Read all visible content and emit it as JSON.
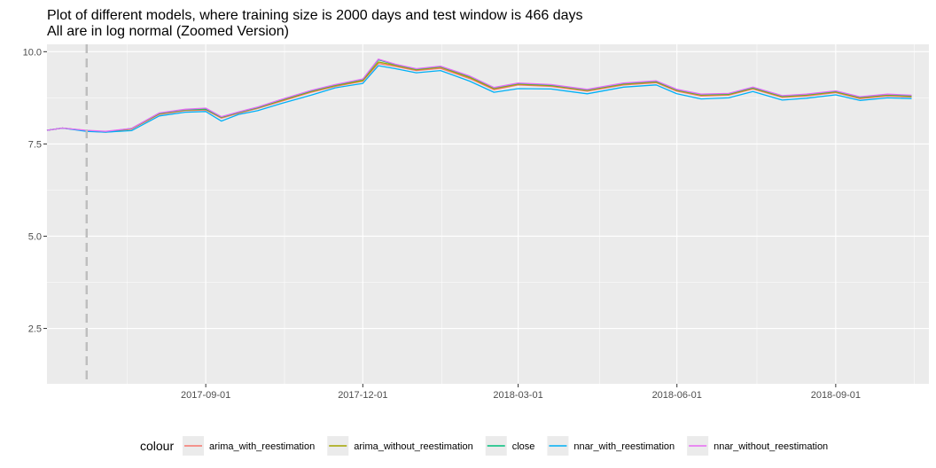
{
  "chart_data": {
    "type": "line",
    "title": "Plot of different models, where training size is 2000 days and test window is 466 days",
    "subtitle": "All are in log normal (Zoomed Version)",
    "xlabel": "",
    "ylabel": "",
    "xlim": [
      "2017-06-01",
      "2018-10-25"
    ],
    "ylim": [
      1.0,
      10.2
    ],
    "x_ticks": [
      "2017-09-01",
      "2017-12-01",
      "2018-03-01",
      "2018-06-01",
      "2018-09-01"
    ],
    "y_ticks": [
      2.5,
      5.0,
      7.5,
      10.0
    ],
    "y_tick_labels": [
      "2.5",
      "5.0",
      "7.5",
      "10.0"
    ],
    "grid": true,
    "legend_position": "bottom",
    "legend_title": "colour",
    "vline": {
      "x": "2017-06-24",
      "style": "dashed",
      "color": "#bebebe"
    },
    "x": [
      "2017-06-01",
      "2017-06-10",
      "2017-06-24",
      "2017-07-05",
      "2017-07-20",
      "2017-08-05",
      "2017-08-20",
      "2017-09-01",
      "2017-09-10",
      "2017-09-20",
      "2017-10-01",
      "2017-10-15",
      "2017-11-01",
      "2017-11-15",
      "2017-12-01",
      "2017-12-10",
      "2017-12-20",
      "2018-01-01",
      "2018-01-15",
      "2018-02-01",
      "2018-02-15",
      "2018-03-01",
      "2018-03-20",
      "2018-04-10",
      "2018-05-01",
      "2018-05-20",
      "2018-06-01",
      "2018-06-15",
      "2018-07-01",
      "2018-07-15",
      "2018-08-01",
      "2018-08-15",
      "2018-09-01",
      "2018-09-15",
      "2018-10-01",
      "2018-10-15"
    ],
    "series": [
      {
        "name": "arima_with_reestimation",
        "color": "#F8766D",
        "values": [
          7.87,
          7.93,
          7.85,
          7.82,
          7.9,
          8.3,
          8.4,
          8.42,
          8.2,
          8.33,
          8.46,
          8.66,
          8.9,
          9.06,
          9.2,
          9.68,
          9.6,
          9.49,
          9.55,
          9.27,
          8.97,
          9.1,
          9.06,
          8.93,
          9.1,
          9.16,
          8.93,
          8.8,
          8.82,
          8.99,
          8.76,
          8.8,
          8.89,
          8.73,
          8.8,
          8.77
        ]
      },
      {
        "name": "arima_without_reestimation",
        "color": "#A3A500",
        "values": [
          7.87,
          7.93,
          7.86,
          7.83,
          7.91,
          8.32,
          8.42,
          8.44,
          8.22,
          8.35,
          8.48,
          8.68,
          8.92,
          9.08,
          9.22,
          9.72,
          9.63,
          9.51,
          9.58,
          9.3,
          9.0,
          9.12,
          9.08,
          8.95,
          9.12,
          9.18,
          8.95,
          8.82,
          8.84,
          9.01,
          8.78,
          8.82,
          8.91,
          8.75,
          8.82,
          8.79
        ]
      },
      {
        "name": "close",
        "color": "#00BF7D",
        "values": [
          7.87,
          7.93,
          7.86,
          7.83,
          7.92,
          8.33,
          8.43,
          8.45,
          8.23,
          8.36,
          8.49,
          8.7,
          8.94,
          9.1,
          9.25,
          9.78,
          9.65,
          9.53,
          9.6,
          9.33,
          9.02,
          9.14,
          9.1,
          8.97,
          9.14,
          9.2,
          8.97,
          8.84,
          8.86,
          9.03,
          8.8,
          8.84,
          8.93,
          8.77,
          8.84,
          8.81
        ]
      },
      {
        "name": "nnar_with_reestimation",
        "color": "#00B0F6",
        "values": [
          7.87,
          7.93,
          7.84,
          7.82,
          7.86,
          8.26,
          8.36,
          8.38,
          8.12,
          8.3,
          8.4,
          8.6,
          8.82,
          9.02,
          9.14,
          9.62,
          9.54,
          9.43,
          9.49,
          9.2,
          8.9,
          9.0,
          8.99,
          8.86,
          9.04,
          9.1,
          8.86,
          8.72,
          8.75,
          8.92,
          8.69,
          8.74,
          8.83,
          8.68,
          8.75,
          8.73
        ]
      },
      {
        "name": "nnar_without_reestimation",
        "color": "#E76BF3",
        "values": [
          7.87,
          7.93,
          7.87,
          7.84,
          7.92,
          8.34,
          8.44,
          8.47,
          8.24,
          8.37,
          8.5,
          8.71,
          8.95,
          9.11,
          9.26,
          9.8,
          9.66,
          9.54,
          9.61,
          9.34,
          9.03,
          9.15,
          9.11,
          8.98,
          9.15,
          9.21,
          8.98,
          8.85,
          8.87,
          9.04,
          8.81,
          8.85,
          8.94,
          8.78,
          8.85,
          8.82
        ]
      }
    ]
  }
}
